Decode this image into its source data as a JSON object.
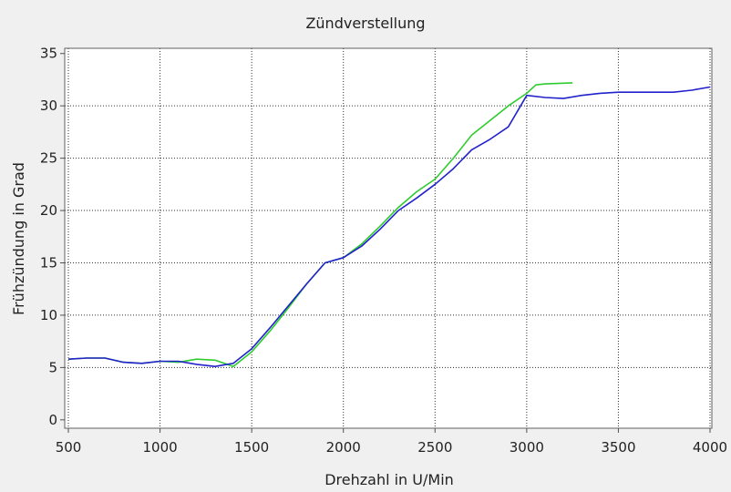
{
  "chart_data": {
    "type": "line",
    "title": "Zündverstellung",
    "xlabel": "Drehzahl in U/Min",
    "ylabel": "Frühzündung in Grad",
    "xlim": [
      480,
      4010
    ],
    "ylim": [
      -0.8,
      35.5
    ],
    "xticks": [
      500,
      1000,
      1500,
      2000,
      2500,
      3000,
      3500,
      4000
    ],
    "yticks": [
      0,
      5,
      10,
      15,
      20,
      25,
      30,
      35
    ],
    "grid": true,
    "background": "#ffffff",
    "series": [
      {
        "color": "#2ecc2e",
        "x": [
          500,
          600,
          700,
          800,
          900,
          1000,
          1100,
          1200,
          1300,
          1400,
          1500,
          1600,
          1700,
          1800,
          1900,
          2000,
          2100,
          2200,
          2300,
          2400,
          2500,
          2600,
          2700,
          2800,
          2900,
          3000,
          3050,
          3100,
          3250
        ],
        "y": [
          5.8,
          5.9,
          5.9,
          5.5,
          5.4,
          5.6,
          5.5,
          5.8,
          5.7,
          5.1,
          6.5,
          8.5,
          10.7,
          13.0,
          15.0,
          15.5,
          16.8,
          18.5,
          20.3,
          21.8,
          23.0,
          25.0,
          27.2,
          28.6,
          30.0,
          31.2,
          32.0,
          32.1,
          32.2
        ]
      },
      {
        "color": "#2222cc",
        "x": [
          500,
          600,
          700,
          800,
          900,
          1000,
          1100,
          1200,
          1300,
          1400,
          1500,
          1600,
          1700,
          1800,
          1900,
          2000,
          2100,
          2200,
          2300,
          2400,
          2500,
          2600,
          2700,
          2800,
          2900,
          3000,
          3100,
          3200,
          3300,
          3400,
          3500,
          3600,
          3700,
          3800,
          3900,
          4000
        ],
        "y": [
          5.8,
          5.9,
          5.9,
          5.5,
          5.4,
          5.6,
          5.6,
          5.3,
          5.1,
          5.4,
          6.8,
          8.8,
          10.9,
          13.0,
          15.0,
          15.5,
          16.6,
          18.2,
          20.0,
          21.2,
          22.5,
          24.0,
          25.8,
          26.8,
          28.0,
          31.0,
          30.8,
          30.7,
          31.0,
          31.2,
          31.3,
          31.3,
          31.3,
          31.3,
          31.5,
          31.8
        ]
      }
    ]
  }
}
